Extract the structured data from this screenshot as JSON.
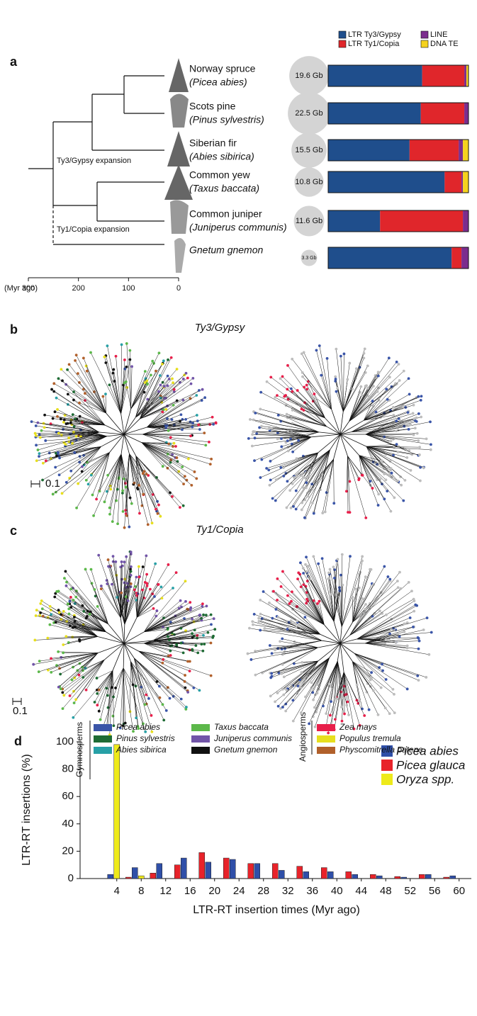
{
  "panel_labels": [
    "a",
    "b",
    "c",
    "d"
  ],
  "chart_data": [
    {
      "type": "tree",
      "categories": [
        "Norway spruce",
        "Scots pine",
        "Siberian fir",
        "Common yew",
        "Common juniper",
        null
      ],
      "species": [
        "(Picea abies)",
        "(Pinus sylvestris)",
        "(Abies sibirica)",
        "(Taxus baccata)",
        "(Juniperus communis)",
        "Gnetum gnemon"
      ],
      "annotations": [
        "Ty3/Gypsy expansion",
        "Ty1/Copia expansion"
      ],
      "xlabel": "(Myr ago)",
      "xlim": [
        300,
        0
      ],
      "xticks": [
        300,
        200,
        100,
        0
      ]
    },
    {
      "type": "stacked-bar-h",
      "genome_size": {
        "values": [
          19.6,
          22.5,
          15.5,
          10.8,
          11.6,
          3.3
        ],
        "value_labels": [
          "19.6 Gb",
          "22.5 Gb",
          "15.5 Gb",
          "10.8 Gb",
          "11.6 Gb",
          "3.3 Gb"
        ],
        "color": "#d4d4d4"
      },
      "xlim": [
        0,
        100
      ],
      "series": [
        {
          "name": "LTR Ty3/Gypsy",
          "color": "#1f4e8c",
          "values": [
            67,
            66,
            58,
            83,
            37,
            88
          ]
        },
        {
          "name": "LTR Ty1/Copia",
          "color": "#e0262b",
          "values": [
            30,
            31,
            35,
            12,
            59,
            7
          ]
        },
        {
          "name": "LINE",
          "color": "#7b2d8e",
          "values": [
            1.5,
            3,
            3,
            1,
            4,
            5
          ]
        },
        {
          "name": "DNA TE",
          "color": "#f5d21e",
          "values": [
            1.5,
            0,
            4,
            4,
            0,
            0
          ]
        }
      ]
    },
    {
      "type": "phylogeny",
      "title": "Ty3/Gypsy",
      "scale": 0.1
    },
    {
      "type": "phylogeny",
      "title": "Ty1/Copia",
      "scale": 0.1
    },
    {
      "type": "bar",
      "x": [
        4,
        8,
        12,
        16,
        20,
        24,
        28,
        32,
        36,
        40,
        44,
        48,
        52,
        56,
        60
      ],
      "xticks": [
        4,
        8,
        12,
        16,
        20,
        24,
        28,
        32,
        36,
        40,
        44,
        48,
        52,
        56,
        60
      ],
      "xlim": [
        -2,
        62
      ],
      "ylim": [
        0,
        100
      ],
      "yticks": [
        0,
        20,
        40,
        60,
        80,
        100
      ],
      "xlabel": "LTR-RT insertion times (Myr ago)",
      "ylabel": "LTR-RT insertions (%)",
      "series": [
        {
          "name": "Picea abies",
          "color": "#2f4fa8",
          "values": [
            3,
            8,
            11,
            15,
            12,
            14,
            11,
            6,
            5,
            5,
            3,
            2,
            1,
            3,
            2
          ]
        },
        {
          "name": "Picea glauca",
          "color": "#e8232a",
          "values": [
            0,
            1,
            4,
            10,
            19,
            15,
            11,
            11,
            9,
            8,
            5,
            3,
            1.5,
            3,
            1
          ]
        },
        {
          "name": "Oryza spp.",
          "color": "#eeea1a",
          "values": [
            98,
            2,
            0,
            0,
            0,
            0,
            0,
            0,
            0,
            0,
            0,
            0,
            0,
            0,
            0
          ]
        }
      ]
    }
  ],
  "species_legend": [
    {
      "name": "Gymnosperms",
      "items": [
        {
          "name": "Picea abies",
          "color": "#3a55a8"
        },
        {
          "name": "Pinus sylvestris",
          "color": "#1e6b34"
        },
        {
          "name": "Abies sibirica",
          "color": "#27a0a6"
        },
        {
          "name": "Taxus baccata",
          "color": "#5cb84a"
        },
        {
          "name": "Juniperus communis",
          "color": "#7154a8"
        },
        {
          "name": "Gnetum gnemon",
          "color": "#111111"
        }
      ]
    },
    {
      "name": "Angiosperms",
      "items": [
        {
          "name": "Zea mays",
          "color": "#e81f4a"
        },
        {
          "name": "Populus tremula",
          "color": "#e7df1e"
        },
        {
          "name": "Physcomitrella patens",
          "color": "#b1602b"
        }
      ]
    }
  ]
}
